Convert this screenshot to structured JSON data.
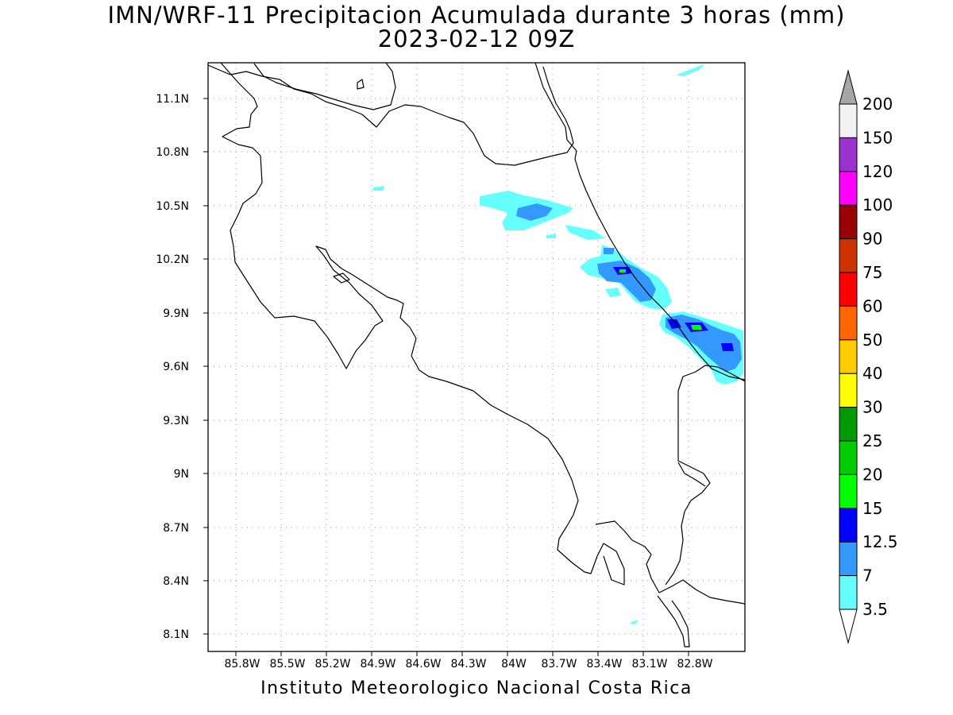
{
  "title": {
    "line1": "IMN/WRF-11 Precipitacion Acumulada durante 3 horas (mm)",
    "line2": "2023-02-12 09Z"
  },
  "footer": "Instituto Meteorologico Nacional Costa Rica",
  "map": {
    "lon_labels": [
      "85.8W",
      "85.5W",
      "85.2W",
      "84.9W",
      "84.6W",
      "84.3W",
      "84W",
      "83.7W",
      "83.4W",
      "83.1W",
      "82.8W"
    ],
    "lat_labels": [
      "11.1N",
      "10.8N",
      "10.5N",
      "10.2N",
      "9.9N",
      "9.6N",
      "9.3N",
      "9N",
      "8.7N",
      "8.4N",
      "8.1N"
    ]
  },
  "colorbar": {
    "labels": [
      "200",
      "150",
      "120",
      "100",
      "90",
      "75",
      "60",
      "50",
      "40",
      "30",
      "25",
      "20",
      "15",
      "12.5",
      "7",
      "3.5"
    ],
    "colors": [
      "#f2f2f2",
      "#9a32cd",
      "#ff00ff",
      "#990000",
      "#cc3300",
      "#ff0000",
      "#ff6600",
      "#ffcc00",
      "#ffff00",
      "#009900",
      "#00cc00",
      "#00ff00",
      "#0000ff",
      "#3399ff",
      "#66ffff"
    ],
    "over_color": "#a6a6a6",
    "under_color": "#ffffff"
  }
}
